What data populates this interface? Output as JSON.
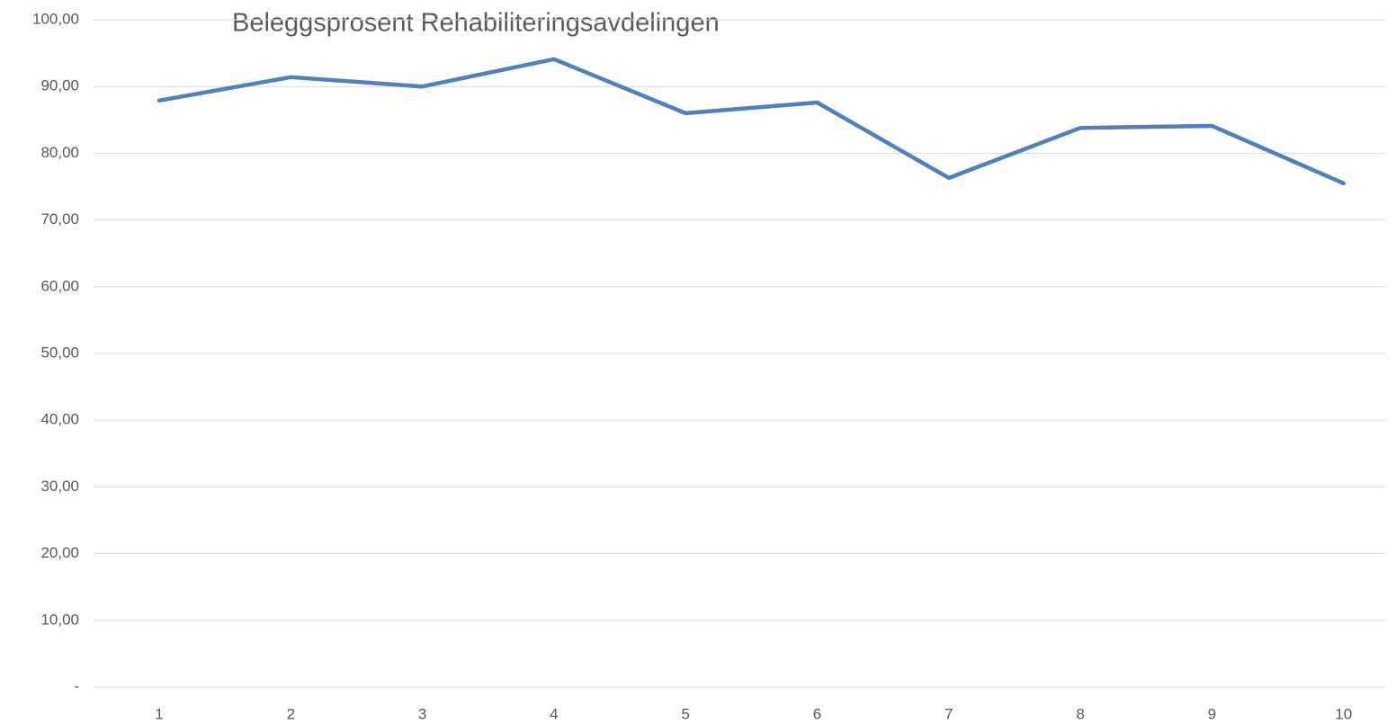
{
  "chart_data": {
    "type": "line",
    "title": "Beleggsprosent Rehabiliteringsavdelingen",
    "categories": [
      "1",
      "2",
      "3",
      "4",
      "5",
      "6",
      "7",
      "8",
      "9",
      "10"
    ],
    "series": [
      {
        "name": "Beleggsprosent",
        "color": "#4f81bd",
        "values": [
          87.9,
          91.4,
          90.0,
          94.1,
          86.0,
          87.6,
          76.3,
          83.8,
          84.1,
          75.5
        ]
      }
    ],
    "ylim": [
      0,
      100
    ],
    "yticks": [
      {
        "value": 0,
        "label": "-"
      },
      {
        "value": 10,
        "label": "10,00"
      },
      {
        "value": 20,
        "label": "20,00"
      },
      {
        "value": 30,
        "label": "30,00"
      },
      {
        "value": 40,
        "label": "40,00"
      },
      {
        "value": 50,
        "label": "50,00"
      },
      {
        "value": 60,
        "label": "60,00"
      },
      {
        "value": 70,
        "label": "70,00"
      },
      {
        "value": 80,
        "label": "80,00"
      },
      {
        "value": 90,
        "label": "90,00"
      },
      {
        "value": 100,
        "label": "100,00"
      }
    ],
    "grid": true
  }
}
